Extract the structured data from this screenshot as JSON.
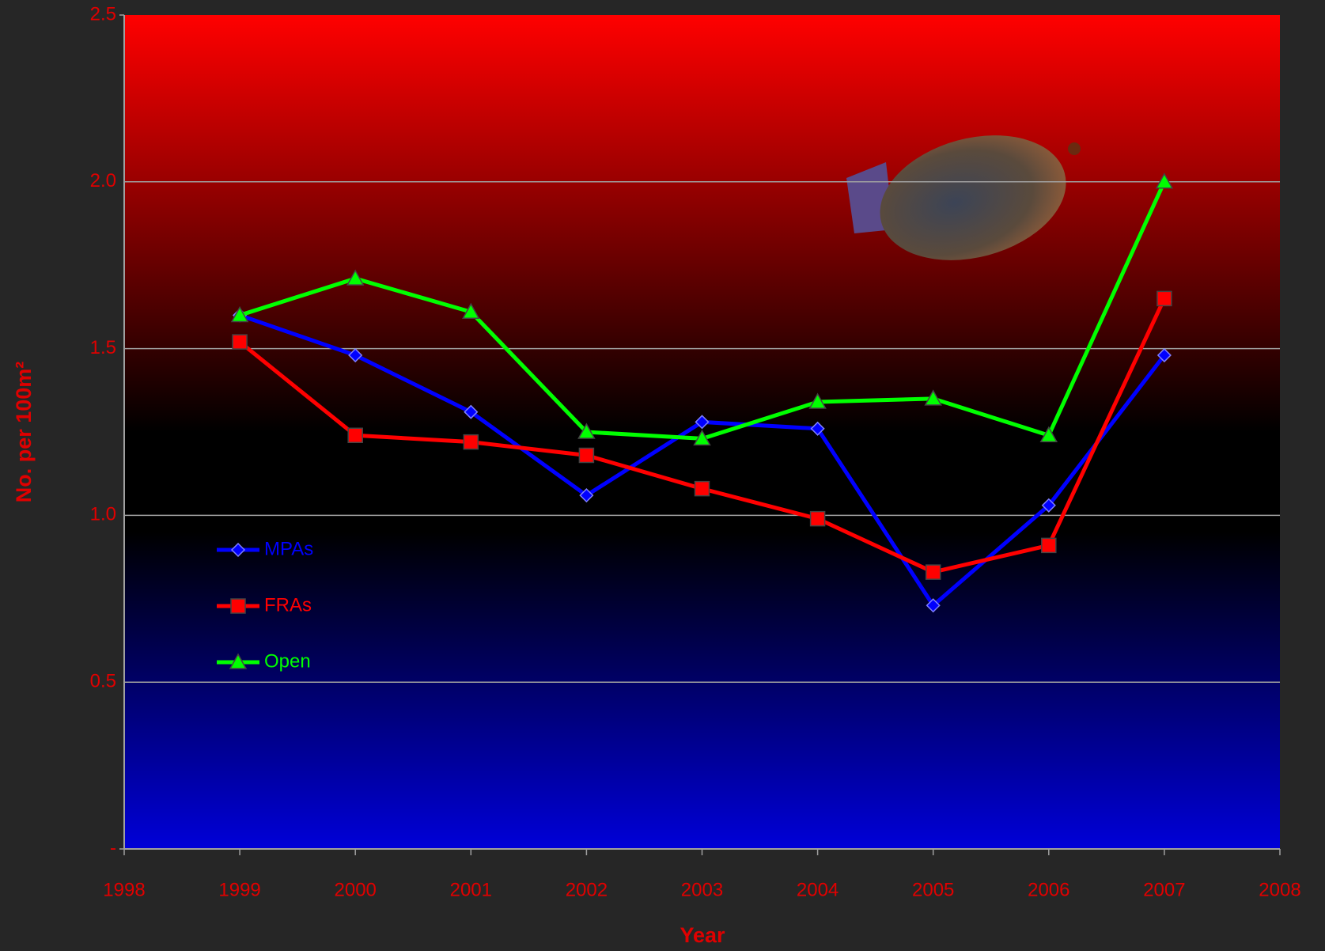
{
  "chart_data": {
    "type": "line",
    "x_label": "Year",
    "y_label": "No. per 100m²",
    "x": [
      1999,
      2000,
      2001,
      2002,
      2003,
      2004,
      2005,
      2006,
      2007
    ],
    "series": [
      {
        "name": "MPAs",
        "color": "#0000ff",
        "marker": "diamond",
        "values": [
          1.6,
          1.48,
          1.31,
          1.06,
          1.28,
          1.26,
          0.73,
          1.03,
          1.48
        ]
      },
      {
        "name": "FRAs",
        "color": "#ff0000",
        "marker": "square",
        "values": [
          1.52,
          1.24,
          1.22,
          1.18,
          1.08,
          0.99,
          0.83,
          0.91,
          1.65
        ]
      },
      {
        "name": "Open",
        "color": "#00ff00",
        "marker": "triangle",
        "values": [
          1.6,
          1.71,
          1.61,
          1.25,
          1.23,
          1.34,
          1.35,
          1.24,
          2.0
        ]
      }
    ],
    "xlim": [
      1998,
      2008
    ],
    "xticks": [
      1998,
      1999,
      2000,
      2001,
      2002,
      2003,
      2004,
      2005,
      2006,
      2007,
      2008
    ],
    "ylim": [
      0,
      2.5
    ],
    "yticks": [
      {
        "value": 0,
        "label": "-"
      },
      {
        "value": 0.5,
        "label": "0.5"
      },
      {
        "value": 1,
        "label": "1.0"
      },
      {
        "value": 1.5,
        "label": "1.5"
      },
      {
        "value": 2,
        "label": "2.0"
      },
      {
        "value": 2.5,
        "label": "2.5"
      }
    ],
    "grid": true,
    "legend": "left"
  }
}
